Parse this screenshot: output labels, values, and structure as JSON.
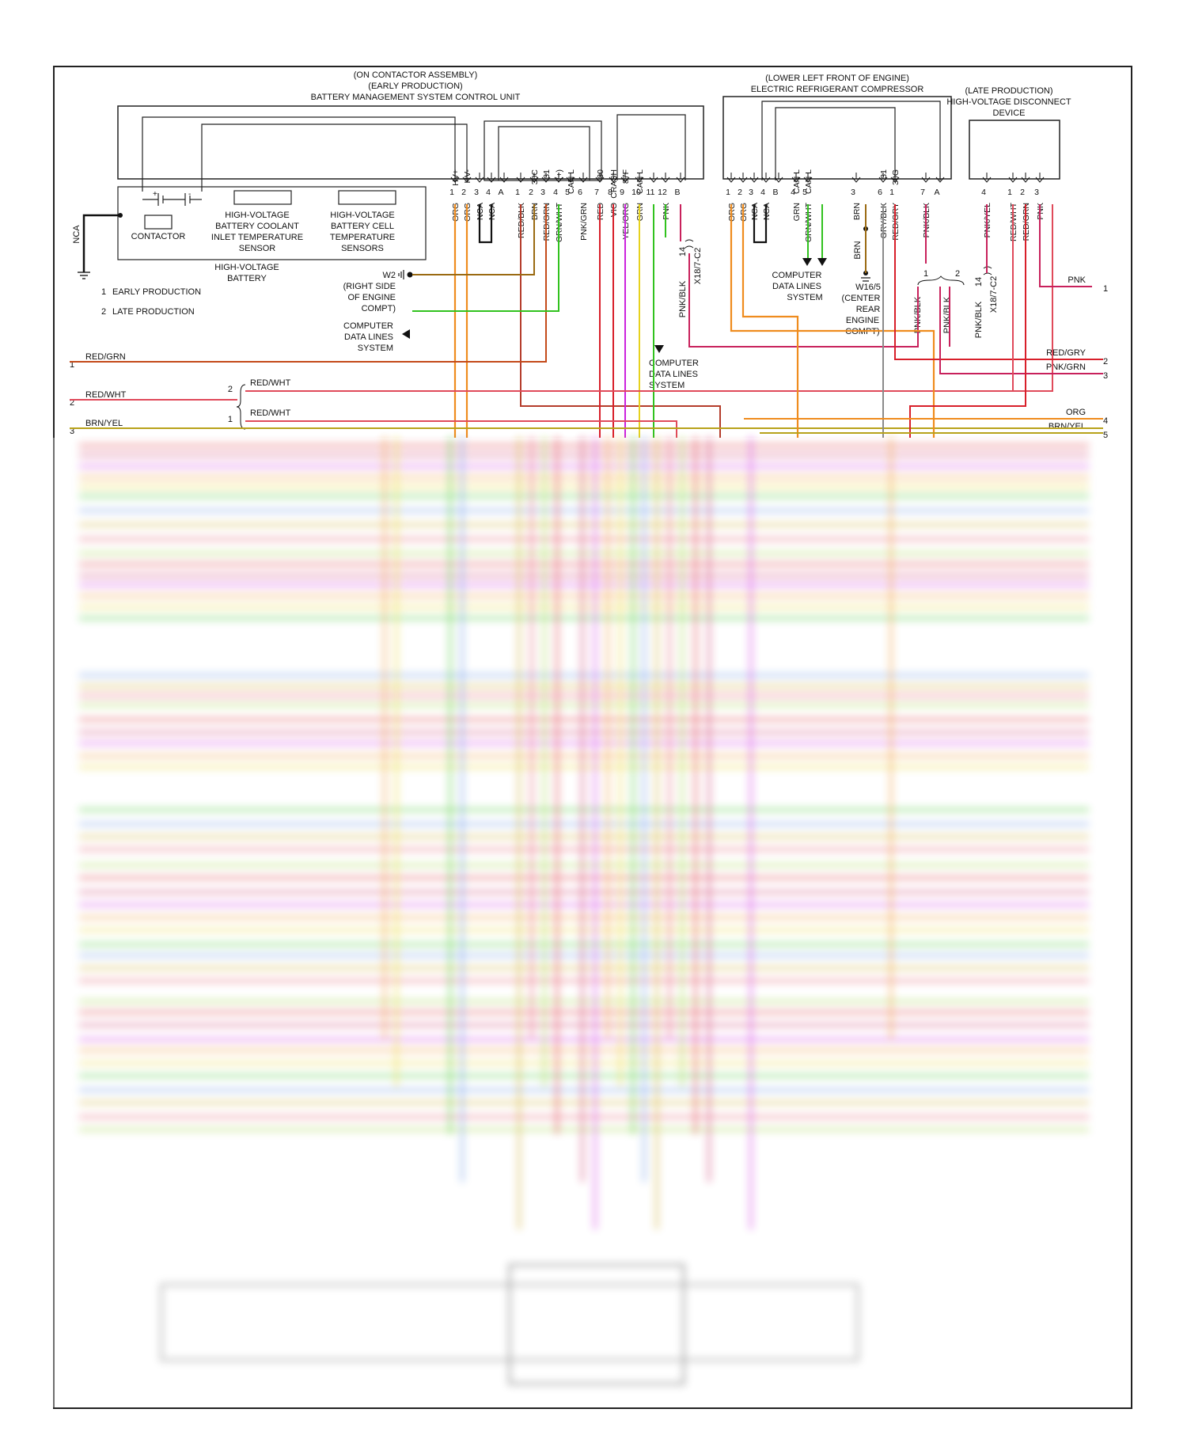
{
  "colors": {
    "ORG": "#ef8c1e",
    "RED": "#d81f2a",
    "PNK": "#c8215c",
    "VIO": "#cc22dd",
    "YEL": "#e6d21e",
    "GRN": "#31c21e",
    "BRN": "#9a6a12",
    "GRY": "#8a8a8a",
    "BLK": "#111111",
    "RED_BRN": "#b43c2b",
    "RED_WHT": "#e04a5a",
    "BRN_YEL": "#b8a21a"
  },
  "bms": {
    "title": "BATTERY MANAGEMENT SYSTEM CONTROL UNIT",
    "subtitle1": "(ON CONTACTOR ASSEMBLY)",
    "subtitle2": "(EARLY PRODUCTION)",
    "pins": [
      {
        "num": "1",
        "fn": "HV+",
        "wire": "ORG"
      },
      {
        "num": "2",
        "fn": "HV-",
        "wire": "ORG"
      },
      {
        "num": "3",
        "fn": "",
        "wire": "NCA"
      },
      {
        "num": "4",
        "fn": "",
        "wire": "NCA"
      },
      {
        "num": "A",
        "fn": "",
        "wire": ""
      },
      {
        "num": "1",
        "fn": "",
        "wire": "RED/BLK"
      },
      {
        "num": "2",
        "fn": "30C",
        "wire": "BRN"
      },
      {
        "num": "3",
        "fn": "31",
        "wire": "RED/GRN"
      },
      {
        "num": "4",
        "fn": "(+)",
        "wire": "GRN/WHT"
      },
      {
        "num": "5",
        "fn": "CAN L",
        "wire": ""
      },
      {
        "num": "6",
        "fn": "",
        "wire": "PNK/GRN"
      },
      {
        "num": "7",
        "fn": "30",
        "wire": "RED"
      },
      {
        "num": "8",
        "fn": "CRASH",
        "wire": "VIO"
      },
      {
        "num": "9",
        "fn": "87F",
        "wire": "YEL/ORG"
      },
      {
        "num": "10",
        "fn": "CAN L",
        "wire": "GRN"
      },
      {
        "num": "11",
        "fn": "",
        "wire": ""
      },
      {
        "num": "12",
        "fn": "",
        "wire": "PNK"
      },
      {
        "num": "B",
        "fn": "",
        "wire": ""
      }
    ]
  },
  "battery": {
    "label1": "HIGH-VOLTAGE",
    "label2": "BATTERY",
    "contactor": "CONTACTOR",
    "coolant": [
      "HIGH-VOLTAGE",
      "BATTERY COOLANT",
      "INLET TEMPERATURE",
      "SENSOR"
    ],
    "cell": [
      "HIGH-VOLTAGE",
      "BATTERY CELL",
      "TEMPERATURE",
      "SENSORS"
    ],
    "plus": "+",
    "minus": "-"
  },
  "nca_left": "NCA",
  "legend": {
    "item1_num": "1",
    "item1": "EARLY PRODUCTION",
    "item2_num": "2",
    "item2": "LATE PRODUCTION"
  },
  "ground_w2": {
    "id": "W2",
    "loc": [
      "(RIGHT SIDE",
      "OF ENGINE",
      "COMPT)"
    ]
  },
  "cdl_left": [
    "COMPUTER",
    "DATA LINES",
    "SYSTEM"
  ],
  "cdl_mid": [
    "COMPUTER",
    "DATA LINES",
    "SYSTEM"
  ],
  "cdl_right": [
    "COMPUTER",
    "DATA LINES",
    "SYSTEM"
  ],
  "x18_left": {
    "pin": "14",
    "id": "X18/7-C2",
    "wire": "PNK/BLK"
  },
  "x18_right": {
    "pin": "14",
    "id": "X18/7-C2",
    "wire": "PNK/BLK"
  },
  "compressor": {
    "title": "ELECTRIC REFRIGERANT COMPRESSOR",
    "subtitle": "(LOWER LEFT FRONT OF ENGINE)",
    "pins": [
      {
        "num": "1",
        "fn": "",
        "wire": "ORG"
      },
      {
        "num": "2",
        "fn": "",
        "wire": "ORG"
      },
      {
        "num": "3",
        "fn": "",
        "wire": "NCA"
      },
      {
        "num": "4",
        "fn": "",
        "wire": "NCA"
      },
      {
        "num": "B",
        "fn": "",
        "wire": ""
      },
      {
        "num": "4",
        "fn": "CAN L",
        "wire": "GRN"
      },
      {
        "num": "5",
        "fn": "CAN L",
        "wire": "GRN/WHT"
      },
      {
        "num": "3",
        "fn": "",
        "wire": "BRN"
      },
      {
        "num": "6",
        "fn": "31",
        "wire": "GRY/BLK"
      },
      {
        "num": "1",
        "fn": "30G",
        "wire": "RED/GRY"
      },
      {
        "num": "7",
        "fn": "",
        "wire": "PNK/BLK"
      },
      {
        "num": "A",
        "fn": "",
        "wire": ""
      }
    ]
  },
  "ground_w16": {
    "id": "W16/5",
    "wire": "BRN",
    "loc": [
      "(CENTER",
      "REAR",
      "ENGINE",
      "COMPT)"
    ]
  },
  "disconnect": {
    "title": [
      "(LATE PRODUCTION)",
      "HIGH-VOLTAGE DISCONNECT",
      "DEVICE"
    ],
    "pins": [
      {
        "num": "4",
        "wire": "PNK/YEL"
      },
      {
        "num": "1",
        "wire": "RED/WHT"
      },
      {
        "num": "2",
        "wire": "RED/GRN"
      },
      {
        "num": "3",
        "wire": "PNK"
      }
    ]
  },
  "brace_right": {
    "a": "1",
    "b": "2"
  },
  "left_wires": [
    {
      "num": "1",
      "label": "RED/GRN"
    },
    {
      "num": "2",
      "label": "RED/WHT"
    },
    {
      "num": "3",
      "label": "BRN/YEL"
    }
  ],
  "left_split": [
    {
      "num": "2",
      "label": "RED/WHT"
    },
    {
      "num": "1",
      "label": "RED/WHT"
    }
  ],
  "right_wires": [
    {
      "num": "1",
      "label": "PNK"
    },
    {
      "num": "2",
      "label": "RED/GRY"
    },
    {
      "num": "3",
      "label": "PNK/GRN"
    },
    {
      "num": "4",
      "label": "ORG"
    },
    {
      "num": "5",
      "label": "BRN/YEL"
    }
  ]
}
